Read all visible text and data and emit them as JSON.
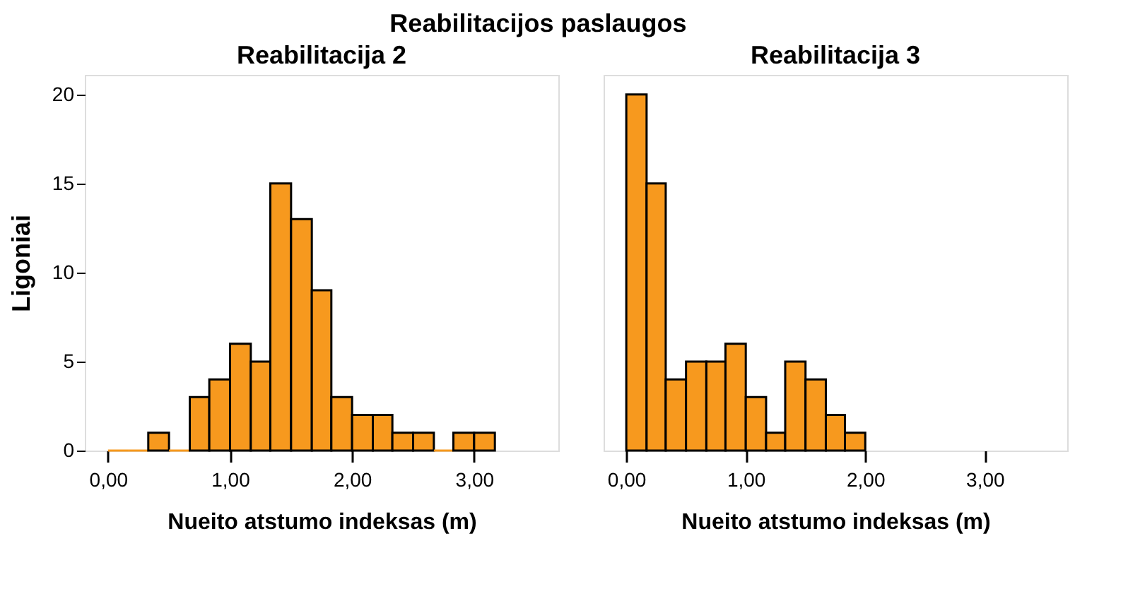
{
  "chart_data": [
    {
      "type": "histogram",
      "title": "Reabilitacija 2",
      "xlabel": "Nueito atstumo indeksas (m)",
      "ylabel": "Ligoniai",
      "annotations": [
        "Reabilitacijos paslaugos"
      ],
      "bins": [
        0,
        0.17,
        0.33,
        0.5,
        0.67,
        0.83,
        1,
        1.17,
        1.33,
        1.5,
        1.67,
        1.83,
        2,
        2.17,
        2.33,
        2.5,
        2.67,
        2.83,
        3,
        3.17
      ],
      "series": [
        {
          "color": "#f7991e",
          "values": [
            0,
            0,
            1,
            0,
            3,
            4,
            6,
            5,
            15,
            13,
            9,
            3,
            2,
            2,
            1,
            1,
            0,
            1,
            1
          ]
        }
      ],
      "xlim": [
        -0.19,
        3.69
      ],
      "ylim": [
        0,
        21.1
      ],
      "xticks": [
        {
          "value": 0,
          "label": "0,00"
        },
        {
          "value": 1,
          "label": "1,00"
        },
        {
          "value": 2,
          "label": "2,00"
        },
        {
          "value": 3,
          "label": "3,00"
        }
      ],
      "yticks": [
        0,
        5,
        10,
        15,
        20
      ],
      "grid": false
    },
    {
      "type": "histogram",
      "title": "Reabilitacija 3",
      "xlabel": "Nueito atstumo indeksas (m)",
      "bins": [
        0,
        0.17,
        0.33,
        0.5,
        0.67,
        0.83,
        1,
        1.17,
        1.33,
        1.5,
        1.67,
        1.83,
        2
      ],
      "series": [
        {
          "color": "#f7991e",
          "values": [
            20,
            15,
            4,
            5,
            5,
            6,
            3,
            1,
            5,
            4,
            2,
            1
          ]
        }
      ],
      "xlim": [
        -0.19,
        3.69
      ],
      "ylim": [
        0,
        21.1
      ],
      "xticks": [
        {
          "value": 0,
          "label": "0,00"
        },
        {
          "value": 1,
          "label": "1,00"
        },
        {
          "value": 2,
          "label": "2,00"
        },
        {
          "value": 3,
          "label": "3,00"
        }
      ],
      "yticks": [
        0,
        5,
        10,
        15,
        20
      ],
      "tick_labels": "x",
      "grid": false
    }
  ]
}
